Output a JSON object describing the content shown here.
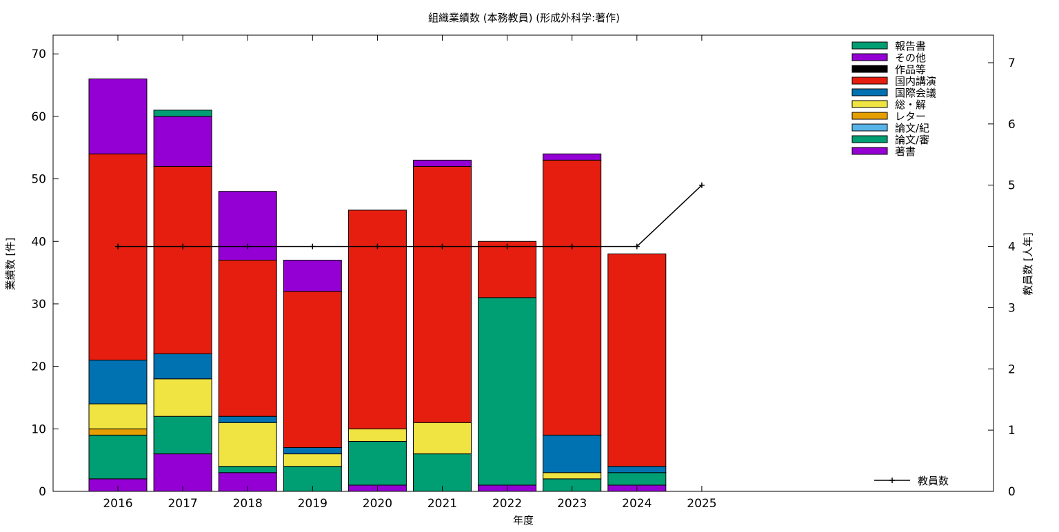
{
  "chart_data": {
    "type": "bar",
    "stacked": true,
    "title": "組織業績数 (本務教員) (形成外科学:著作)",
    "xlabel": "年度",
    "ylabel": "業績数 [件]",
    "y2label": "教員数 [人年]",
    "ylim": [
      0,
      73
    ],
    "y2lim": [
      0,
      7.45
    ],
    "yticks": [
      0,
      10,
      20,
      30,
      40,
      50,
      60,
      70
    ],
    "y2ticks": [
      0,
      1,
      2,
      3,
      4,
      5,
      6,
      7
    ],
    "categories": [
      "2016",
      "2017",
      "2018",
      "2019",
      "2020",
      "2021",
      "2022",
      "2023",
      "2024",
      "2025"
    ],
    "grid": false,
    "legend_position": "top-right",
    "series": [
      {
        "name": "著書",
        "color": "#9400d3",
        "values": [
          2,
          6,
          3,
          0,
          1,
          0,
          1,
          0,
          1,
          0
        ]
      },
      {
        "name": "論文/審",
        "color": "#009e73",
        "values": [
          7,
          6,
          1,
          4,
          7,
          6,
          30,
          2,
          2,
          0
        ]
      },
      {
        "name": "論文/紀",
        "color": "#56b4e9",
        "values": [
          0,
          0,
          0,
          0,
          0,
          0,
          0,
          0,
          0,
          0
        ]
      },
      {
        "name": "レター",
        "color": "#e69f00",
        "values": [
          1,
          0,
          0,
          0,
          0,
          0,
          0,
          0,
          0,
          0
        ]
      },
      {
        "name": "総・解",
        "color": "#f0e442",
        "values": [
          4,
          6,
          7,
          2,
          2,
          5,
          0,
          1,
          0,
          0
        ]
      },
      {
        "name": "国際会議",
        "color": "#0072b2",
        "values": [
          7,
          4,
          1,
          1,
          0,
          0,
          0,
          6,
          1,
          0
        ]
      },
      {
        "name": "国内講演",
        "color": "#e51e10",
        "values": [
          33,
          30,
          25,
          25,
          35,
          41,
          9,
          44,
          34,
          0
        ]
      },
      {
        "name": "作品等",
        "color": "#000000",
        "values": [
          0,
          0,
          0,
          0,
          0,
          0,
          0,
          0,
          0,
          0
        ]
      },
      {
        "name": "その他",
        "color": "#9400d3",
        "values": [
          12,
          8,
          11,
          5,
          0,
          1,
          0,
          1,
          0,
          0
        ]
      },
      {
        "name": "報告書",
        "color": "#009e73",
        "values": [
          0,
          1,
          0,
          0,
          0,
          0,
          0,
          0,
          0,
          0
        ]
      }
    ],
    "line_series": {
      "name": "教員数",
      "color": "#000000",
      "axis": "y2",
      "values": [
        4,
        4,
        4,
        4,
        4,
        4,
        4,
        4,
        4,
        5
      ]
    }
  }
}
